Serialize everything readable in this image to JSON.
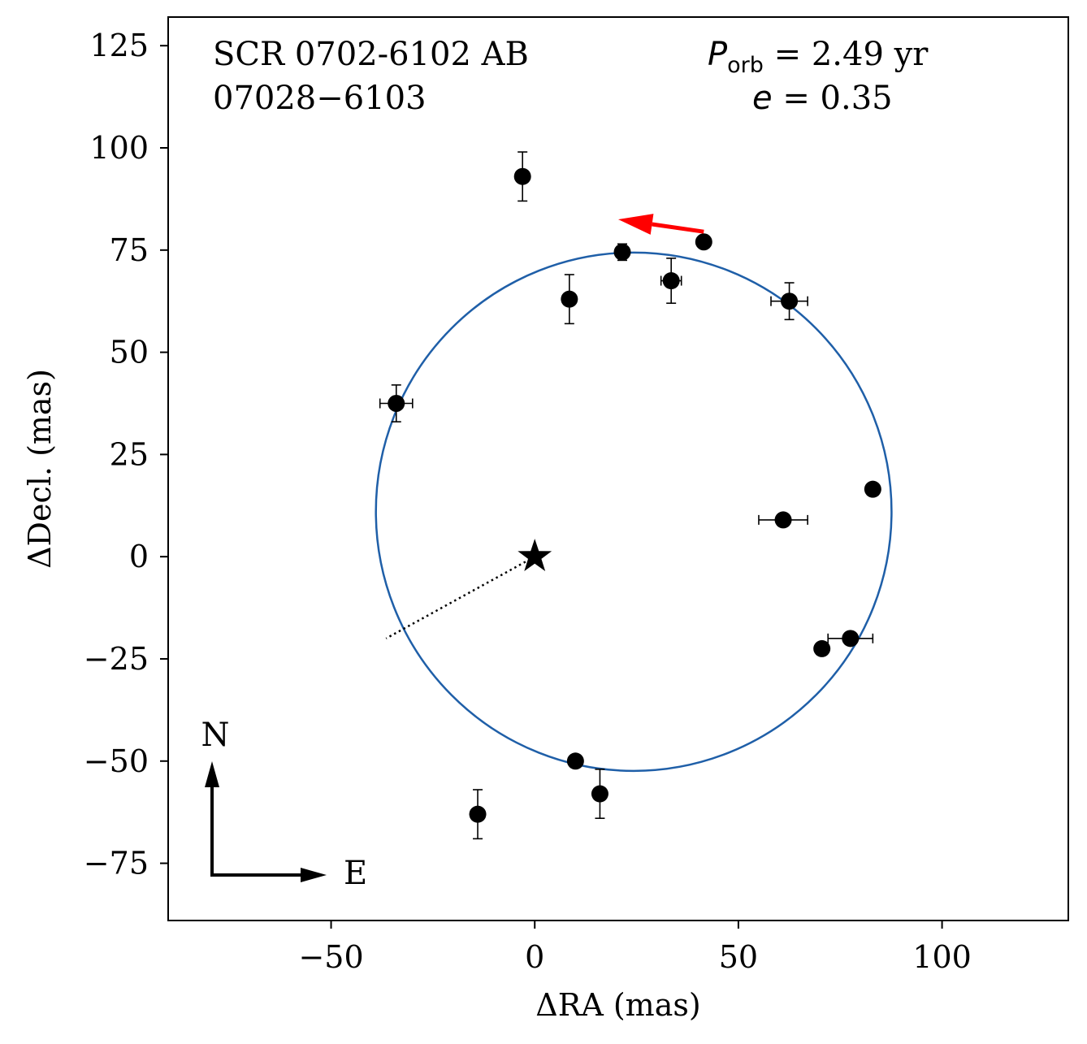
{
  "chart_data": {
    "type": "scatter",
    "title": "SCR 0702-6102 AB",
    "subtitle": "07028−6103",
    "period_label": "P",
    "period_sub": "orb",
    "period_value": " =  2.49 yr",
    "ecc_label": "e",
    "ecc_value": " = 0.35",
    "xlabel": "ΔRA  (mas)",
    "ylabel": "ΔDecl.  (mas)",
    "xlim": [
      -90,
      131
    ],
    "ylim": [
      -89,
      132
    ],
    "xticks": [
      -50,
      0,
      50,
      100
    ],
    "xtick_labels": [
      "−50",
      "0",
      "50",
      "100"
    ],
    "yticks": [
      -75,
      -50,
      -25,
      0,
      25,
      50,
      75,
      100,
      125
    ],
    "ytick_labels": [
      "−75",
      "−50",
      "−25",
      "0",
      "25",
      "50",
      "75",
      "100",
      "125"
    ],
    "orbit_color": "#1f5fa8",
    "arrow_color": "#ff0000",
    "orbit_ellipse": {
      "cx": 24.3,
      "cy": 11.0,
      "rx": 63.3,
      "ry": 63.4
    },
    "primary": {
      "x": 0,
      "y": 0,
      "marker": "star"
    },
    "periastron_line": {
      "x": [
        0,
        -36.5
      ],
      "y": [
        0,
        -20
      ]
    },
    "direction_arrow": {
      "x": [
        41.5,
        20.5
      ],
      "y": [
        79.5,
        82.5
      ]
    },
    "points": [
      {
        "x": -3,
        "y": 93,
        "xerr": 0,
        "yerr": 6
      },
      {
        "x": 21.5,
        "y": 74.5,
        "xerr": 0,
        "yerr": 2
      },
      {
        "x": 41.5,
        "y": 77,
        "xerr": 0,
        "yerr": 0
      },
      {
        "x": 33.5,
        "y": 67.5,
        "xerr": 2.5,
        "yerr": 5.5
      },
      {
        "x": 62.5,
        "y": 62.5,
        "xerr": 4.5,
        "yerr": 4.5
      },
      {
        "x": 8.5,
        "y": 63,
        "xerr": 0,
        "yerr": 6
      },
      {
        "x": -34,
        "y": 37.5,
        "xerr": 4,
        "yerr": 4.5
      },
      {
        "x": 83,
        "y": 16.5,
        "xerr": 0,
        "yerr": 0
      },
      {
        "x": 61,
        "y": 9,
        "xerr": 6,
        "yerr": 0
      },
      {
        "x": 77.5,
        "y": -20,
        "xerr": 5.5,
        "yerr": 0
      },
      {
        "x": 70.5,
        "y": -22.5,
        "xerr": 0,
        "yerr": 1.5
      },
      {
        "x": 10,
        "y": -50,
        "xerr": 0,
        "yerr": 1.5
      },
      {
        "x": 16,
        "y": -58,
        "xerr": 0,
        "yerr": 6
      },
      {
        "x": -14,
        "y": -63,
        "xerr": 0,
        "yerr": 6
      }
    ],
    "compass": {
      "north_label": "N",
      "east_label": "E"
    }
  }
}
